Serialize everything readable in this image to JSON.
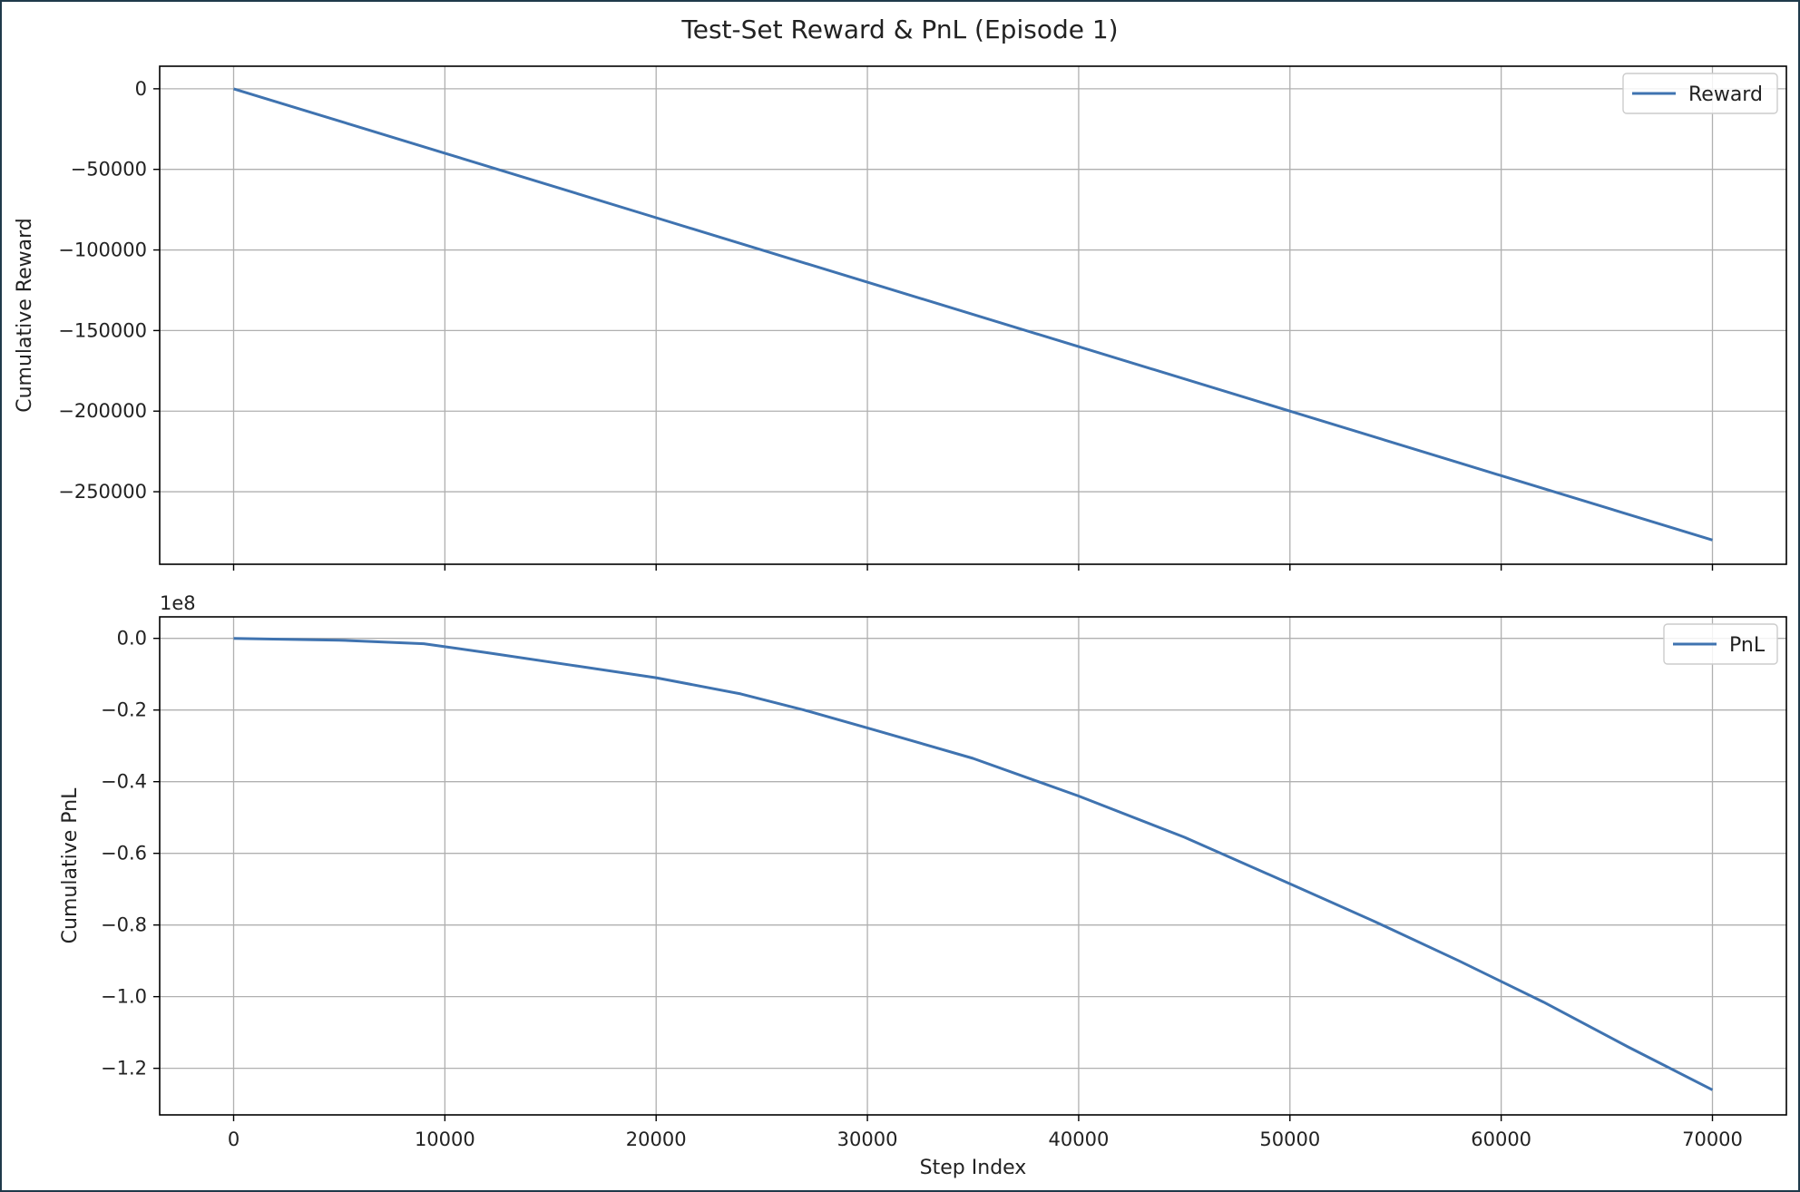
{
  "figure": {
    "title": "Test-Set Reward & PnL (Episode 1)"
  },
  "colors": {
    "line": "#3f73b0",
    "grid": "#b0b0b0",
    "axes": "#000000",
    "legend_border": "#cccccc"
  },
  "chart_data": [
    {
      "type": "line",
      "ylabel": "Cumulative Reward",
      "xlabel": "",
      "grid": true,
      "legend_placement": "top-right",
      "xlim": [
        -3500,
        73500
      ],
      "ylim": [
        -295000,
        14000
      ],
      "x_ticks": [
        0,
        10000,
        20000,
        30000,
        40000,
        50000,
        60000,
        70000
      ],
      "x_tick_labels": [],
      "y_ticks": [
        0,
        -50000,
        -100000,
        -150000,
        -200000,
        -250000
      ],
      "y_tick_labels": [
        "0",
        "−50000",
        "−100000",
        "−150000",
        "−200000",
        "−250000"
      ],
      "series": [
        {
          "name": "Reward",
          "x": [
            0,
            10000,
            20000,
            30000,
            40000,
            50000,
            60000,
            70000
          ],
          "y": [
            0,
            -40000,
            -80000,
            -120000,
            -160000,
            -200000,
            -240000,
            -280000
          ]
        }
      ]
    },
    {
      "type": "line",
      "ylabel": "Cumulative PnL",
      "xlabel": "Step Index",
      "grid": true,
      "legend_placement": "top-right",
      "offset_text": "1e8",
      "xlim": [
        -3500,
        73500
      ],
      "ylim": [
        -1.33,
        0.06
      ],
      "x_ticks": [
        0,
        10000,
        20000,
        30000,
        40000,
        50000,
        60000,
        70000
      ],
      "x_tick_labels": [
        "0",
        "10000",
        "20000",
        "30000",
        "40000",
        "50000",
        "60000",
        "70000"
      ],
      "y_ticks": [
        0.0,
        -0.2,
        -0.4,
        -0.6,
        -0.8,
        -1.0,
        -1.2
      ],
      "y_tick_labels": [
        "0.0",
        "−0.2",
        "−0.4",
        "−0.6",
        "−0.8",
        "−1.0",
        "−1.2"
      ],
      "series": [
        {
          "name": "PnL",
          "x": [
            0,
            5000,
            9000,
            12000,
            16000,
            20000,
            24000,
            27000,
            30000,
            35000,
            40000,
            45000,
            50000,
            54000,
            58000,
            62000,
            66000,
            70000
          ],
          "y": [
            0.0,
            -0.005,
            -0.015,
            -0.04,
            -0.075,
            -0.11,
            -0.155,
            -0.2,
            -0.25,
            -0.335,
            -0.44,
            -0.555,
            -0.685,
            -0.79,
            -0.9,
            -1.015,
            -1.14,
            -1.26
          ]
        }
      ]
    }
  ]
}
